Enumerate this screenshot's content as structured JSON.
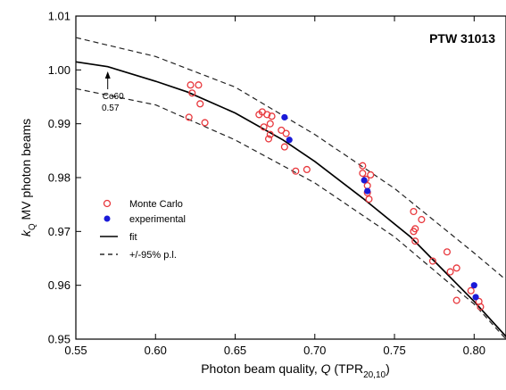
{
  "chart_data": {
    "type": "scatter",
    "title": "PTW 31013",
    "xlabel": {
      "main": "Photon beam quality, ",
      "italic": "Q",
      "open": " (TPR",
      "sub": "20,10",
      "close": ")"
    },
    "ylabel": {
      "italic": "k",
      "sub": "Q",
      "rest": " MV photon beams"
    },
    "xlim": [
      0.55,
      0.82
    ],
    "ylim": [
      0.95,
      1.01
    ],
    "xticks": [
      "0.55",
      "0.60",
      "0.65",
      "0.70",
      "0.75",
      "0.80"
    ],
    "xtick_values": [
      0.55,
      0.6,
      0.65,
      0.7,
      0.75,
      0.8
    ],
    "yticks": [
      "0.95",
      "0.96",
      "0.97",
      "0.98",
      "0.99",
      "1.00",
      "1.01"
    ],
    "ytick_values": [
      0.95,
      0.96,
      0.97,
      0.98,
      0.99,
      1.0,
      1.01
    ],
    "grid": false,
    "legend_position": "left-middle",
    "annotation": {
      "line1": "Co60",
      "line2": "0.57",
      "x": 0.57
    },
    "colors": {
      "monte_carlo": "#e8383d",
      "experimental": "#1a1ad8",
      "fit": "#000000"
    },
    "series": [
      {
        "name": "Monte Carlo",
        "marker": "open-circle",
        "x": [
          0.621,
          0.622,
          0.623,
          0.627,
          0.628,
          0.631,
          0.665,
          0.667,
          0.668,
          0.67,
          0.671,
          0.672,
          0.672,
          0.673,
          0.679,
          0.681,
          0.682,
          0.688,
          0.695,
          0.73,
          0.73,
          0.732,
          0.733,
          0.733,
          0.734,
          0.735,
          0.762,
          0.762,
          0.763,
          0.763,
          0.767,
          0.774,
          0.783,
          0.785,
          0.789,
          0.789,
          0.798,
          0.803,
          0.804
        ],
        "y": [
          0.9912,
          0.9972,
          0.9957,
          0.9972,
          0.9937,
          0.9902,
          0.9917,
          0.9922,
          0.9894,
          0.9917,
          0.9872,
          0.99,
          0.988,
          0.9914,
          0.9888,
          0.9857,
          0.9882,
          0.9812,
          0.9815,
          0.9822,
          0.9808,
          0.9797,
          0.9785,
          0.9772,
          0.976,
          0.9805,
          0.9737,
          0.97,
          0.9682,
          0.9705,
          0.9722,
          0.9645,
          0.9662,
          0.9625,
          0.9632,
          0.9572,
          0.959,
          0.957,
          0.956
        ]
      },
      {
        "name": "experimental",
        "marker": "filled-circle",
        "x": [
          0.681,
          0.684,
          0.731,
          0.733,
          0.8,
          0.801
        ],
        "y": [
          0.9912,
          0.987,
          0.9795,
          0.9775,
          0.96,
          0.9578
        ]
      },
      {
        "name": "fit",
        "line": "solid",
        "x": [
          0.55,
          0.57,
          0.6,
          0.62,
          0.65,
          0.68,
          0.7,
          0.73,
          0.76,
          0.78,
          0.8,
          0.82
        ],
        "y": [
          1.0015,
          1.0006,
          0.9979,
          0.9959,
          0.992,
          0.987,
          0.983,
          0.9762,
          0.969,
          0.963,
          0.957,
          0.9505
        ]
      },
      {
        "name": "+/-95% p.l.",
        "line": "dashed",
        "upper": {
          "x": [
            0.55,
            0.6,
            0.65,
            0.7,
            0.75,
            0.8,
            0.82
          ],
          "y": [
            1.006,
            1.0025,
            0.9968,
            0.988,
            0.978,
            0.966,
            0.961
          ]
        },
        "lower": {
          "x": [
            0.55,
            0.6,
            0.65,
            0.7,
            0.75,
            0.8,
            0.82
          ],
          "y": [
            0.9965,
            0.9935,
            0.987,
            0.979,
            0.969,
            0.9565,
            0.95
          ]
        }
      }
    ]
  }
}
